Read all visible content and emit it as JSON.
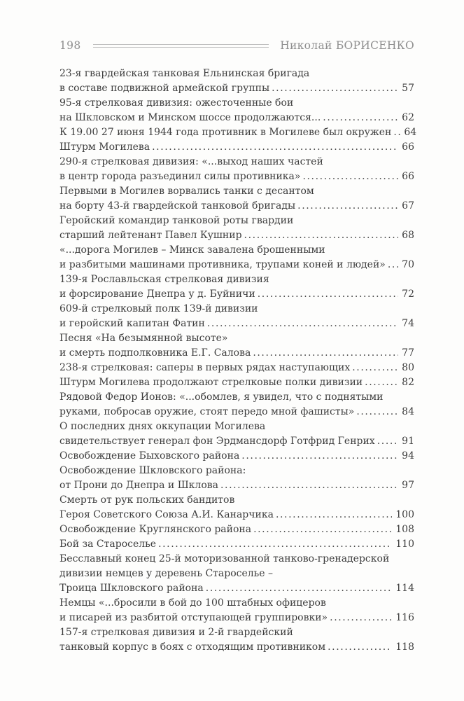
{
  "page": {
    "header": {
      "page_number": "198",
      "author": "Николай БОРИСЕНКО"
    }
  },
  "toc": {
    "entries": [
      {
        "lines": [
          "23-я гвардейская танковая Ельнинская бригада",
          "в составе подвижной армейской группы"
        ],
        "page": "57"
      },
      {
        "lines": [
          "95-я стрелковая дивизия: ожесточенные бои",
          "на Шкловском и Минском шоссе продолжаются..."
        ],
        "page": "62"
      },
      {
        "lines": [
          "К 19.00 27 июня 1944 года противник в Могилеве был окружен"
        ],
        "page": "64"
      },
      {
        "lines": [
          "Штурм Могилева"
        ],
        "page": "66"
      },
      {
        "lines": [
          "290-я стрелковая дивизия: «...выход наших частей",
          "в центр города разъединил силы противника»"
        ],
        "page": "66"
      },
      {
        "lines": [
          "Первыми в Могилев ворвались танки с десантом",
          "на борту 43-й гвардейской танковой бригады"
        ],
        "page": "67"
      },
      {
        "lines": [
          "Геройский командир танковой роты гвардии",
          "старший лейтенант Павел Кушнир"
        ],
        "page": "68"
      },
      {
        "lines": [
          "«...дорога Могилев – Минск завалена брошенными",
          "и разбитыми машинами противника, трупами коней и людей»"
        ],
        "page": "70"
      },
      {
        "lines": [
          "139-я Рославльская стрелковая дивизия",
          "и форсирование Днепра у д. Буйничи"
        ],
        "page": "72"
      },
      {
        "lines": [
          "609-й стрелковый полк 139-й дивизии",
          "и геройский капитан Фатин"
        ],
        "page": "74"
      },
      {
        "lines": [
          "Песня «На безымянной высоте»",
          "и смерть подполковника Е.Г. Салова"
        ],
        "page": "77"
      },
      {
        "lines": [
          "238-я стрелковая: саперы в первых рядах наступающих"
        ],
        "page": "80"
      },
      {
        "lines": [
          "Штурм Могилева продолжают стрелковые полки дивизии"
        ],
        "page": "82"
      },
      {
        "lines": [
          "Рядовой Федор Ионов: «...обомлев, я увидел, что с поднятыми",
          "руками, побросав оружие, стоят передо мной фашисты»"
        ],
        "page": "84"
      },
      {
        "lines": [
          "О последних днях оккупации Могилева",
          "свидетельствует генерал фон Эрдмансдорф Готфрид Генрих"
        ],
        "page": "91"
      },
      {
        "lines": [
          "Освобождение Быховского района"
        ],
        "page": "94"
      },
      {
        "lines": [
          "Освобождение Шкловского района:",
          "от Прони до Днепра и Шклова"
        ],
        "page": "97"
      },
      {
        "lines": [
          "Смерть от рук польских бандитов",
          "Героя Советского Союза А.И. Канарчика"
        ],
        "page": "100"
      },
      {
        "lines": [
          "Освобождение Круглянского района"
        ],
        "page": "108"
      },
      {
        "lines": [
          "Бой за Староселье"
        ],
        "page": "110"
      },
      {
        "lines": [
          "Бесславный конец 25-й моторизованной танково-гренадерской",
          "дивизии немцев у деревень Староселье –",
          "Троица Шкловского района"
        ],
        "page": "114"
      },
      {
        "lines": [
          "Немцы «...бросили в бой до 100 штабных офицеров",
          "и писарей из разбитой отступающей группировки»"
        ],
        "page": "116"
      },
      {
        "lines": [
          "157-я стрелковая дивизия и 2-й гвардейский",
          "танковый корпус в боях с отходящим противником"
        ],
        "page": "118"
      }
    ]
  }
}
